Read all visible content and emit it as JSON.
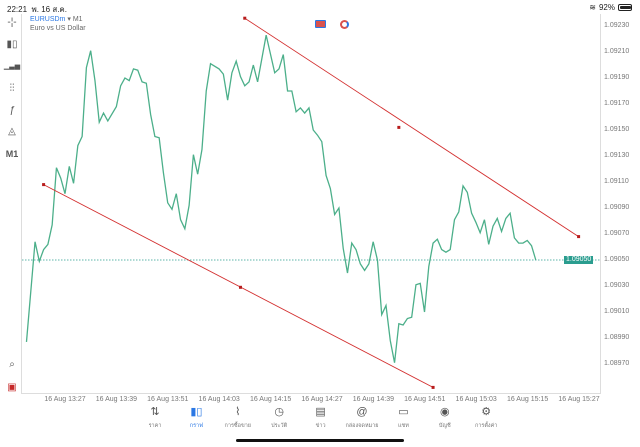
{
  "status_bar": {
    "time": "22:21",
    "date": "พ. 16 ส.ค.",
    "battery": "92%",
    "battery_level": 0.92
  },
  "symbol": {
    "name": "EURUSDm",
    "separator": "▾",
    "timeframe": "M1",
    "description": "Euro vs US Dollar"
  },
  "toolbar": [
    {
      "icon": "crosshair-icon",
      "glyph": "-¦-"
    },
    {
      "icon": "candlestick-icon",
      "glyph": "▮▯"
    },
    {
      "icon": "volume-bars-icon",
      "glyph": "▁▃▅"
    },
    {
      "icon": "indicators-icon",
      "glyph": "⫶⫶"
    },
    {
      "icon": "function-icon",
      "glyph": "ƒ"
    },
    {
      "icon": "objects-icon",
      "glyph": "◬"
    },
    {
      "icon": "timeframe",
      "glyph": "M1"
    }
  ],
  "colors": {
    "line": "#4caf8a",
    "trendline": "#d32f2f",
    "current_price": "#2a9d8f",
    "accent": "#2b78e4"
  },
  "chart_data": {
    "type": "line",
    "current_price": "1.09050",
    "y_ticks": [
      "1.09230",
      "1.09210",
      "1.09190",
      "1.09170",
      "1.09150",
      "1.09130",
      "1.09110",
      "1.09090",
      "1.09070",
      "1.09050",
      "1.09030",
      "1.09010",
      "1.08990",
      "1.08970"
    ],
    "x_ticks": [
      "16 Aug 13:27",
      "16 Aug 13:39",
      "16 Aug 13:51",
      "16 Aug 14:03",
      "16 Aug 14:15",
      "16 Aug 14:27",
      "16 Aug 14:39",
      "16 Aug 14:51",
      "16 Aug 15:03",
      "16 Aug 15:15",
      "16 Aug 15:27"
    ],
    "series": [
      [
        "13:18",
        1.08987
      ],
      [
        "13:20",
        1.09064
      ],
      [
        "13:21",
        1.09049
      ],
      [
        "13:22",
        1.09058
      ],
      [
        "13:23",
        1.09062
      ],
      [
        "13:24",
        1.09077
      ],
      [
        "13:25",
        1.09121
      ],
      [
        "13:26",
        1.09113
      ],
      [
        "13:27",
        1.09101
      ],
      [
        "13:28",
        1.09122
      ],
      [
        "13:29",
        1.09109
      ],
      [
        "13:30",
        1.09138
      ],
      [
        "13:31",
        1.09145
      ],
      [
        "13:32",
        1.09198
      ],
      [
        "13:33",
        1.09211
      ],
      [
        "13:34",
        1.09188
      ],
      [
        "13:35",
        1.09156
      ],
      [
        "13:36",
        1.09163
      ],
      [
        "13:37",
        1.09157
      ],
      [
        "13:39",
        1.09168
      ],
      [
        "13:40",
        1.09184
      ],
      [
        "13:41",
        1.0919
      ],
      [
        "13:42",
        1.09188
      ],
      [
        "13:43",
        1.09197
      ],
      [
        "13:44",
        1.09196
      ],
      [
        "13:45",
        1.09187
      ],
      [
        "13:46",
        1.09186
      ],
      [
        "13:47",
        1.09162
      ],
      [
        "13:48",
        1.09145
      ],
      [
        "13:49",
        1.09144
      ],
      [
        "13:50",
        1.09117
      ],
      [
        "13:51",
        1.09094
      ],
      [
        "13:52",
        1.09089
      ],
      [
        "13:53",
        1.09101
      ],
      [
        "13:54",
        1.09081
      ],
      [
        "13:55",
        1.09074
      ],
      [
        "13:56",
        1.09092
      ],
      [
        "13:57",
        1.09131
      ],
      [
        "13:58",
        1.09116
      ],
      [
        "13:59",
        1.09135
      ],
      [
        "14:00",
        1.0918
      ],
      [
        "14:01",
        1.09201
      ],
      [
        "14:03",
        1.09197
      ],
      [
        "14:04",
        1.09193
      ],
      [
        "14:05",
        1.09173
      ],
      [
        "14:06",
        1.09194
      ],
      [
        "14:07",
        1.09203
      ],
      [
        "14:08",
        1.09191
      ],
      [
        "14:09",
        1.09184
      ],
      [
        "14:10",
        1.09187
      ],
      [
        "14:11",
        1.092
      ],
      [
        "14:12",
        1.09187
      ],
      [
        "14:14",
        1.09223
      ],
      [
        "14:16",
        1.09194
      ],
      [
        "14:17",
        1.09197
      ],
      [
        "14:18",
        1.09208
      ],
      [
        "14:19",
        1.0918
      ],
      [
        "14:20",
        1.0918
      ],
      [
        "14:21",
        1.09164
      ],
      [
        "14:22",
        1.09167
      ],
      [
        "14:23",
        1.09163
      ],
      [
        "14:24",
        1.09167
      ],
      [
        "14:25",
        1.0915
      ],
      [
        "14:26",
        1.09146
      ],
      [
        "14:27",
        1.09141
      ],
      [
        "14:28",
        1.09115
      ],
      [
        "14:29",
        1.09105
      ],
      [
        "14:30",
        1.09085
      ],
      [
        "14:31",
        1.0909
      ],
      [
        "14:32",
        1.09059
      ],
      [
        "14:33",
        1.0904
      ],
      [
        "14:34",
        1.09063
      ],
      [
        "14:35",
        1.09058
      ],
      [
        "14:36",
        1.09047
      ],
      [
        "14:37",
        1.09042
      ],
      [
        "14:38",
        1.09047
      ],
      [
        "14:39",
        1.09064
      ],
      [
        "14:40",
        1.0905
      ],
      [
        "14:41",
        1.09008
      ],
      [
        "14:42",
        1.09015
      ],
      [
        "14:43",
        1.08988
      ],
      [
        "14:44",
        1.08971
      ],
      [
        "14:45",
        1.09001
      ],
      [
        "14:46",
        1.09
      ],
      [
        "14:47",
        1.09005
      ],
      [
        "14:48",
        1.09006
      ],
      [
        "14:49",
        1.09031
      ],
      [
        "14:50",
        1.09032
      ],
      [
        "14:51",
        1.0901
      ],
      [
        "14:52",
        1.09045
      ],
      [
        "14:53",
        1.09063
      ],
      [
        "14:54",
        1.09066
      ],
      [
        "14:55",
        1.09058
      ],
      [
        "14:56",
        1.09056
      ],
      [
        "14:57",
        1.09058
      ],
      [
        "14:58",
        1.09081
      ],
      [
        "14:59",
        1.09087
      ],
      [
        "15:00",
        1.09107
      ],
      [
        "15:01",
        1.09102
      ],
      [
        "15:02",
        1.09086
      ],
      [
        "15:03",
        1.09079
      ],
      [
        "15:04",
        1.09071
      ],
      [
        "15:05",
        1.09081
      ],
      [
        "15:06",
        1.09062
      ],
      [
        "15:07",
        1.09076
      ],
      [
        "15:08",
        1.09082
      ],
      [
        "15:09",
        1.09072
      ],
      [
        "15:10",
        1.09082
      ],
      [
        "15:11",
        1.09086
      ],
      [
        "15:12",
        1.09067
      ],
      [
        "15:13",
        1.09063
      ],
      [
        "15:14",
        1.09063
      ],
      [
        "15:15",
        1.09065
      ],
      [
        "15:16",
        1.09061
      ],
      [
        "15:17",
        1.0905
      ]
    ],
    "trendlines": [
      {
        "points": [
          [
            "14:09",
            1.09236
          ],
          [
            "14:45",
            1.09152
          ],
          [
            "15:27",
            1.09068
          ]
        ]
      },
      {
        "points": [
          [
            "13:22",
            1.09108
          ],
          [
            "14:08",
            1.09029
          ],
          [
            "14:53",
            1.08952
          ]
        ]
      }
    ],
    "grid": false
  },
  "bottom_nav": [
    {
      "icon": "quotes-icon",
      "glyph": "⇅",
      "label": "ราคา"
    },
    {
      "icon": "chart-icon",
      "glyph": "▮▯",
      "label": "กราฟ",
      "active": true
    },
    {
      "icon": "trade-icon",
      "glyph": "⌇",
      "label": "การซื้อขาย"
    },
    {
      "icon": "history-icon",
      "glyph": "◷",
      "label": "ประวัติ"
    },
    {
      "icon": "news-icon",
      "glyph": "▤",
      "label": "ข่าว"
    },
    {
      "icon": "mailbox-icon",
      "glyph": "@",
      "label": "กล่องจดหมาย"
    },
    {
      "icon": "chat-icon",
      "glyph": "▭",
      "label": "แชท"
    },
    {
      "icon": "account-icon",
      "glyph": "◉",
      "label": "บัญชี"
    },
    {
      "icon": "settings-icon",
      "glyph": "⚙",
      "label": "การตั้งค่า"
    }
  ]
}
